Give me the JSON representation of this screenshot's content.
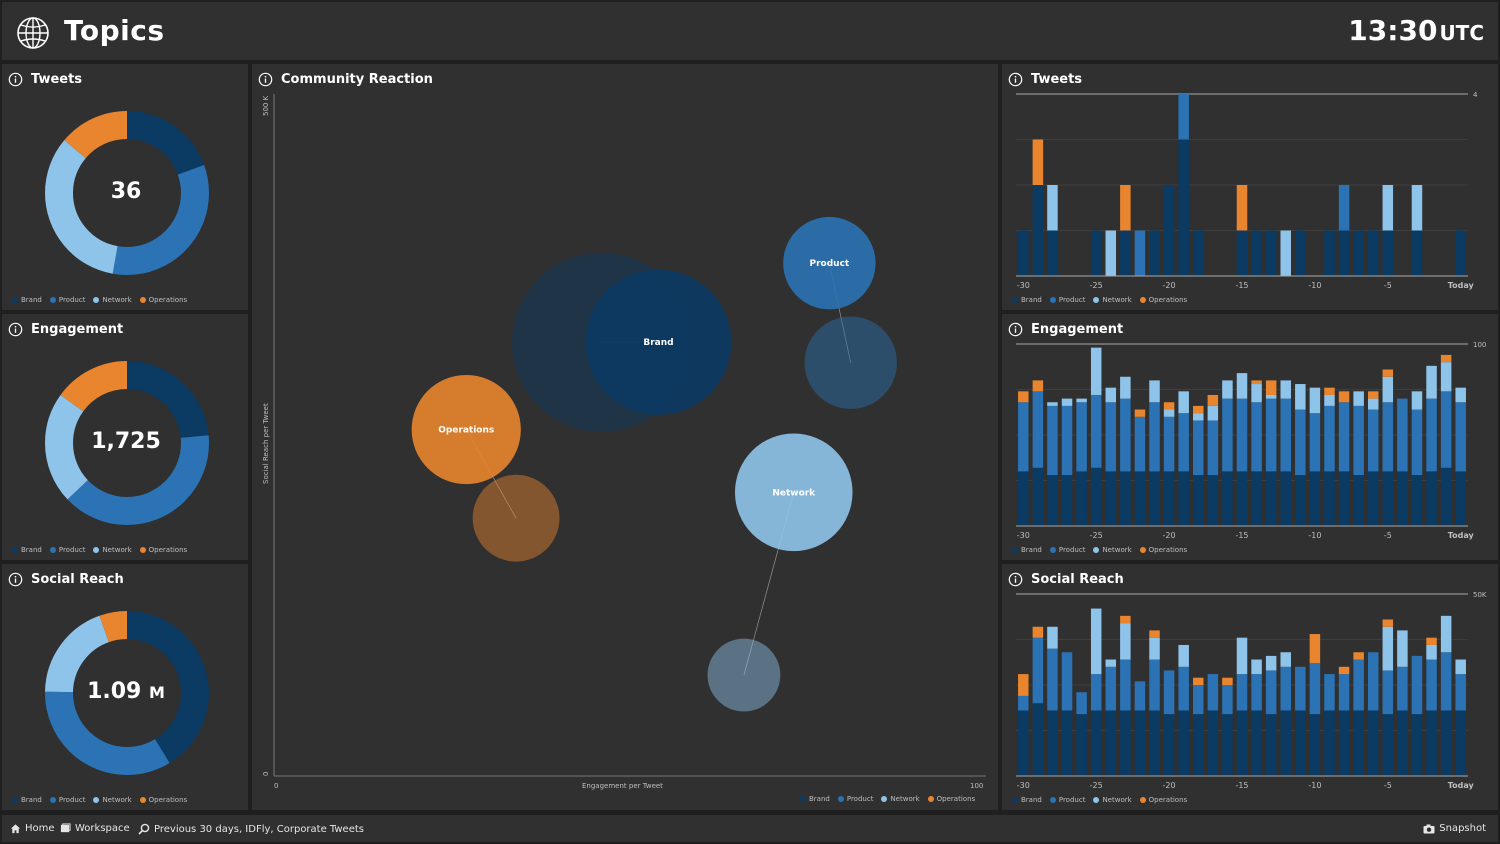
{
  "header": {
    "title": "Topics",
    "time": "13:30",
    "timezone": "UTC",
    "icon": "globe-icon"
  },
  "colors": {
    "Brand": "#0b3a63",
    "Product": "#2b73b4",
    "Network": "#8fc4ea",
    "Operations": "#e8852e",
    "panel": "#303030",
    "background": "#1f1f1f"
  },
  "legend_labels": [
    "Brand",
    "Product",
    "Network",
    "Operations"
  ],
  "left_panels": [
    {
      "title": "Tweets",
      "value": "36",
      "unit": ""
    },
    {
      "title": "Engagement",
      "value": "1,725",
      "unit": ""
    },
    {
      "title": "Social Reach",
      "value": "1.09",
      "unit": "M"
    }
  ],
  "center": {
    "title": "Community Reaction",
    "xlabel": "Engagement per Tweet",
    "ylabel": "Social Reach per Tweet",
    "x_min_label": "0",
    "x_max_label": "100",
    "y_min_label": "0",
    "y_max_label": "500 K"
  },
  "right_panels": [
    {
      "title": "Tweets",
      "max_label": "4"
    },
    {
      "title": "Engagement",
      "max_label": "100"
    },
    {
      "title": "Social Reach",
      "max_label": "50K"
    }
  ],
  "x_ticks": [
    "-30",
    "-25",
    "-20",
    "-15",
    "-10",
    "-5",
    "Today"
  ],
  "footer": {
    "home": "Home",
    "workspace": "Workspace",
    "filter": "Previous 30 days, IDFly, Corporate Tweets",
    "snapshot": "Snapshot"
  },
  "chart_data": [
    {
      "type": "pie",
      "title": "Tweets",
      "categories": [
        "Brand",
        "Product",
        "Network",
        "Operations"
      ],
      "values": [
        7,
        12,
        12,
        5
      ],
      "center_label": "36"
    },
    {
      "type": "pie",
      "title": "Engagement",
      "categories": [
        "Brand",
        "Product",
        "Network",
        "Operations"
      ],
      "values": [
        405,
        680,
        380,
        260
      ],
      "center_label": "1,725"
    },
    {
      "type": "pie",
      "title": "Social Reach",
      "categories": [
        "Brand",
        "Product",
        "Network",
        "Operations"
      ],
      "values": [
        0.45,
        0.37,
        0.21,
        0.06
      ],
      "center_label": "1.09 M"
    },
    {
      "type": "scatter",
      "title": "Community Reaction",
      "xlabel": "Engagement per Tweet",
      "ylabel": "Social Reach per Tweet",
      "xlim": [
        0,
        100
      ],
      "ylim": [
        0,
        500000
      ],
      "series": [
        {
          "name": "Brand",
          "x": 54,
          "y": 318000,
          "size": 52,
          "prev_x": 46,
          "prev_y": 318000,
          "prev_size": 64
        },
        {
          "name": "Product",
          "x": 78,
          "y": 376000,
          "size": 33,
          "prev_x": 81,
          "prev_y": 303000,
          "prev_size": 33
        },
        {
          "name": "Network",
          "x": 73,
          "y": 208000,
          "size": 42,
          "prev_x": 66,
          "prev_y": 74000,
          "prev_size": 26
        },
        {
          "name": "Operations",
          "x": 27,
          "y": 254000,
          "size": 39,
          "prev_x": 34,
          "prev_y": 189000,
          "prev_size": 31
        }
      ]
    },
    {
      "type": "bar",
      "title": "Tweets",
      "stacked": true,
      "ylim": [
        0,
        4
      ],
      "x": [
        -30,
        -29,
        -28,
        -27,
        -26,
        -25,
        -24,
        -23,
        -22,
        -21,
        -20,
        -19,
        -18,
        -17,
        -16,
        -15,
        -14,
        -13,
        -12,
        -11,
        -10,
        -9,
        -8,
        -7,
        -6,
        -5,
        -4,
        -3,
        -2,
        -1,
        0
      ],
      "series": [
        {
          "name": "Brand",
          "values": [
            1,
            2,
            1,
            0,
            0,
            1,
            0,
            1,
            0,
            1,
            2,
            3,
            1,
            0,
            0,
            1,
            1,
            1,
            0,
            1,
            0,
            1,
            1,
            1,
            1,
            1,
            0,
            1,
            0,
            0,
            1
          ]
        },
        {
          "name": "Product",
          "values": [
            0,
            0,
            0,
            0,
            0,
            0,
            0,
            0,
            1,
            0,
            0,
            1,
            0,
            0,
            0,
            0,
            0,
            0,
            0,
            0,
            0,
            0,
            1,
            0,
            0,
            0,
            0,
            0,
            0,
            0,
            0
          ]
        },
        {
          "name": "Network",
          "values": [
            0,
            0,
            1,
            0,
            0,
            0,
            1,
            0,
            0,
            0,
            0,
            0,
            0,
            0,
            0,
            0,
            0,
            0,
            1,
            0,
            0,
            0,
            0,
            0,
            0,
            1,
            0,
            1,
            0,
            0,
            0
          ]
        },
        {
          "name": "Operations",
          "values": [
            0,
            1,
            0,
            0,
            0,
            0,
            0,
            1,
            0,
            0,
            0,
            0,
            0,
            0,
            0,
            1,
            0,
            0,
            0,
            0,
            0,
            0,
            0,
            0,
            0,
            0,
            0,
            0,
            0,
            0,
            0
          ]
        }
      ]
    },
    {
      "type": "bar",
      "title": "Engagement",
      "stacked": true,
      "ylim": [
        0,
        100
      ],
      "x": [
        -30,
        -29,
        -28,
        -27,
        -26,
        -25,
        -24,
        -23,
        -22,
        -21,
        -20,
        -19,
        -18,
        -17,
        -16,
        -15,
        -14,
        -13,
        -12,
        -11,
        -10,
        -9,
        -8,
        -7,
        -6,
        -5,
        -4,
        -3,
        -2,
        -1,
        0
      ],
      "series": [
        {
          "name": "Brand",
          "values": [
            30,
            32,
            28,
            28,
            30,
            32,
            30,
            30,
            30,
            30,
            30,
            30,
            28,
            28,
            30,
            30,
            30,
            30,
            30,
            28,
            30,
            30,
            30,
            28,
            30,
            30,
            30,
            28,
            30,
            32,
            30
          ]
        },
        {
          "name": "Product",
          "values": [
            38,
            42,
            38,
            38,
            38,
            40,
            38,
            40,
            30,
            38,
            30,
            32,
            30,
            30,
            40,
            40,
            38,
            40,
            40,
            36,
            32,
            36,
            38,
            38,
            34,
            38,
            40,
            36,
            40,
            42,
            38
          ]
        },
        {
          "name": "Network",
          "values": [
            0,
            0,
            2,
            4,
            2,
            26,
            8,
            12,
            0,
            12,
            4,
            12,
            4,
            8,
            10,
            14,
            10,
            2,
            10,
            14,
            14,
            6,
            0,
            8,
            6,
            14,
            0,
            10,
            18,
            16,
            8
          ]
        },
        {
          "name": "Operations",
          "values": [
            6,
            6,
            0,
            0,
            0,
            0,
            0,
            0,
            4,
            0,
            4,
            0,
            4,
            6,
            0,
            0,
            2,
            8,
            0,
            0,
            0,
            4,
            6,
            0,
            4,
            4,
            0,
            0,
            0,
            4,
            0
          ]
        }
      ]
    },
    {
      "type": "bar",
      "title": "Social Reach",
      "stacked": true,
      "ylim": [
        0,
        50000
      ],
      "x": [
        -30,
        -29,
        -28,
        -27,
        -26,
        -25,
        -24,
        -23,
        -22,
        -21,
        -20,
        -19,
        -18,
        -17,
        -16,
        -15,
        -14,
        -13,
        -12,
        -11,
        -10,
        -9,
        -8,
        -7,
        -6,
        -5,
        -4,
        -3,
        -2,
        -1,
        0
      ],
      "series": [
        {
          "name": "Brand",
          "values": [
            18000,
            20000,
            18000,
            18000,
            17000,
            18000,
            18000,
            18000,
            18000,
            18000,
            17000,
            18000,
            17000,
            18000,
            17000,
            18000,
            18000,
            17000,
            18000,
            18000,
            17000,
            18000,
            18000,
            18000,
            18000,
            17000,
            18000,
            17000,
            18000,
            18000,
            18000
          ]
        },
        {
          "name": "Product",
          "values": [
            4000,
            18000,
            17000,
            16000,
            6000,
            10000,
            12000,
            14000,
            8000,
            14000,
            12000,
            12000,
            8000,
            10000,
            8000,
            10000,
            10000,
            12000,
            12000,
            12000,
            14000,
            10000,
            10000,
            14000,
            16000,
            12000,
            12000,
            16000,
            14000,
            16000,
            10000
          ]
        },
        {
          "name": "Network",
          "values": [
            0,
            0,
            6000,
            0,
            0,
            18000,
            2000,
            10000,
            0,
            6000,
            0,
            6000,
            0,
            0,
            0,
            10000,
            4000,
            4000,
            4000,
            0,
            0,
            0,
            0,
            0,
            0,
            12000,
            10000,
            0,
            4000,
            10000,
            4000
          ]
        },
        {
          "name": "Operations",
          "values": [
            6000,
            3000,
            0,
            0,
            0,
            0,
            0,
            2000,
            0,
            2000,
            0,
            0,
            2000,
            0,
            2000,
            0,
            0,
            0,
            0,
            0,
            8000,
            0,
            2000,
            2000,
            0,
            2000,
            0,
            0,
            2000,
            0,
            0
          ]
        }
      ]
    }
  ]
}
